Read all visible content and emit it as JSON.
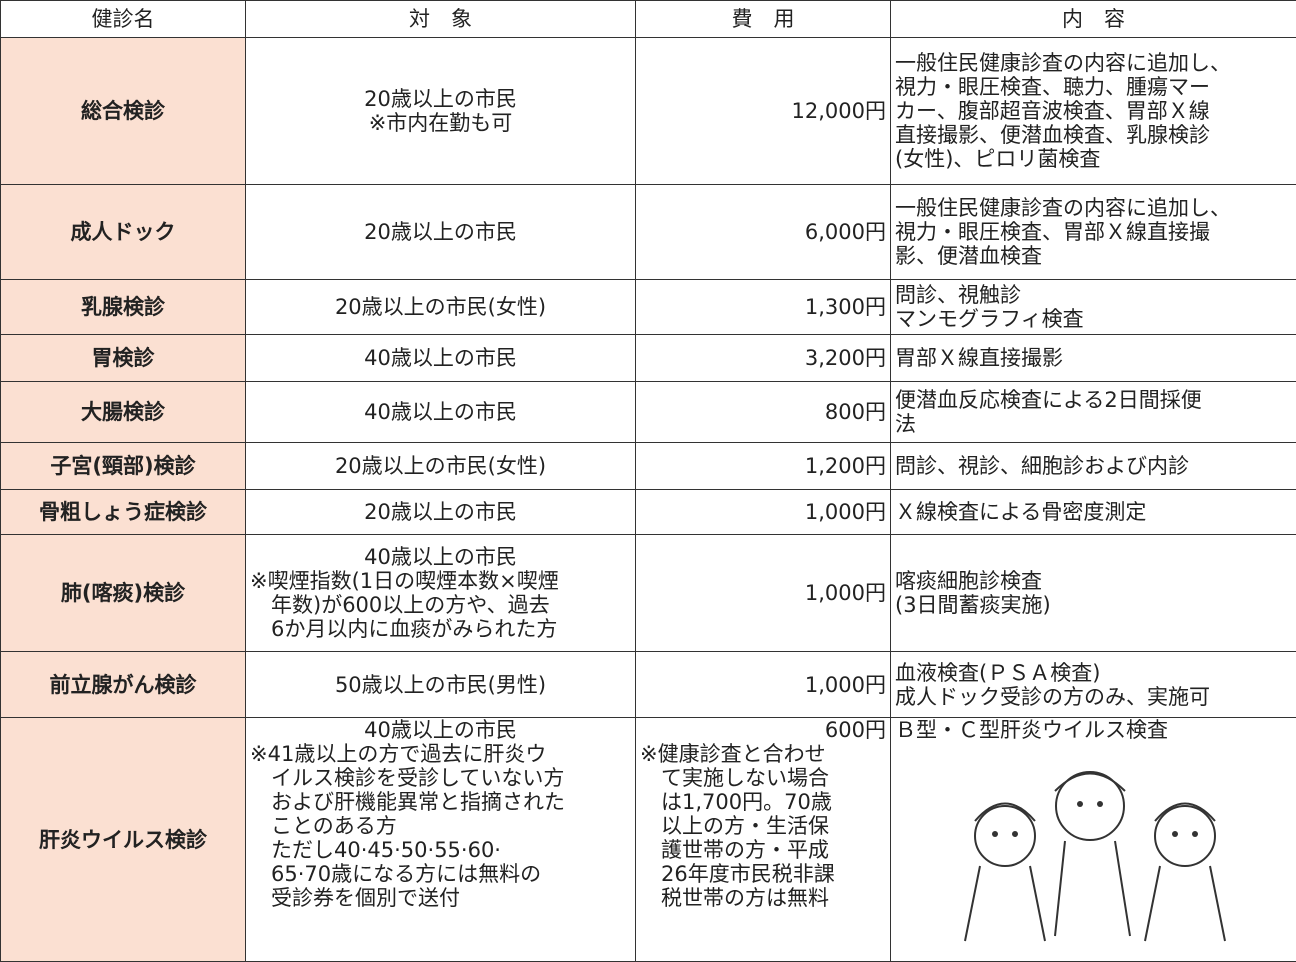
{
  "table": {
    "header": [
      "健診名",
      "対　象",
      "費　用",
      "内　容"
    ],
    "rows": [
      {
        "name": "総合検診",
        "target": [
          "20歳以上の市民",
          "※市内在勤も可"
        ],
        "fee": [
          "12,000円"
        ],
        "content": [
          "一般住民健康診査の内容に追加し、",
          "視力・眼圧検査、聴力、腫瘍マー",
          "カー、腹部超音波検査、胃部Ｘ線",
          "直接撮影、便潜血検査、乳腺検診",
          "(女性)、ピロリ菌検査"
        ]
      },
      {
        "name": "成人ドック",
        "target": [
          "20歳以上の市民"
        ],
        "fee": [
          "6,000円"
        ],
        "content": [
          "一般住民健康診査の内容に追加し、",
          "視力・眼圧検査、胃部Ｘ線直接撮",
          "影、便潜血検査"
        ]
      },
      {
        "name": "乳腺検診",
        "target": [
          "20歳以上の市民(女性)"
        ],
        "fee": [
          "1,300円"
        ],
        "content": [
          "問診、視触診",
          "マンモグラフィ検査"
        ]
      },
      {
        "name": "胃検診",
        "target": [
          "40歳以上の市民"
        ],
        "fee": [
          "3,200円"
        ],
        "content": [
          "胃部Ｘ線直接撮影"
        ]
      },
      {
        "name": "大腸検診",
        "target": [
          "40歳以上の市民"
        ],
        "fee": [
          "800円"
        ],
        "content": [
          "便潜血反応検査による2日間採便",
          "法"
        ]
      },
      {
        "name": "子宮(頸部)検診",
        "target": [
          "20歳以上の市民(女性)"
        ],
        "fee": [
          "1,200円"
        ],
        "content": [
          "問診、視診、細胞診および内診"
        ]
      },
      {
        "name": "骨粗しょう症検診",
        "target": [
          "20歳以上の市民"
        ],
        "fee": [
          "1,000円"
        ],
        "content": [
          "Ｘ線検査による骨密度測定"
        ]
      },
      {
        "name": "肺(喀痰)検診",
        "target": [
          "40歳以上の市民",
          "※喫煙指数(1日の喫煙本数×喫煙",
          "　年数)が600以上の方や、過去",
          "　6か月以内に血痰がみられた方"
        ],
        "fee": [
          "1,000円"
        ],
        "content": [
          "喀痰細胞診検査",
          "(3日間蓄痰実施)"
        ]
      },
      {
        "name": "前立腺がん検診",
        "target": [
          "50歳以上の市民(男性)"
        ],
        "fee": [
          "1,000円"
        ],
        "content": [
          "血液検査(ＰＳＡ検査)",
          "成人ドック受診の方のみ、実施可"
        ]
      },
      {
        "name": "肝炎ウイルス検診",
        "target": [
          "40歳以上の市民",
          "※41歳以上の方で過去に肝炎ウ",
          "　イルス検診を受診していない方",
          "　および肝機能異常と指摘された",
          "　ことのある方",
          "　ただし40·45·50·55·60·",
          "　65·70歳になる方には無料の",
          "　受診券を個別で送付"
        ],
        "fee": [
          "600円",
          "※健康診査と合わせ",
          "　て実施しない場合",
          "　は1,700円。70歳",
          "　以上の方・生活保",
          "　護世帯の方・平成",
          "　26年度市民税非課",
          "　税世帯の方は無料"
        ],
        "content": [
          "Ｂ型・Ｃ型肝炎ウイルス検査"
        ]
      }
    ]
  }
}
